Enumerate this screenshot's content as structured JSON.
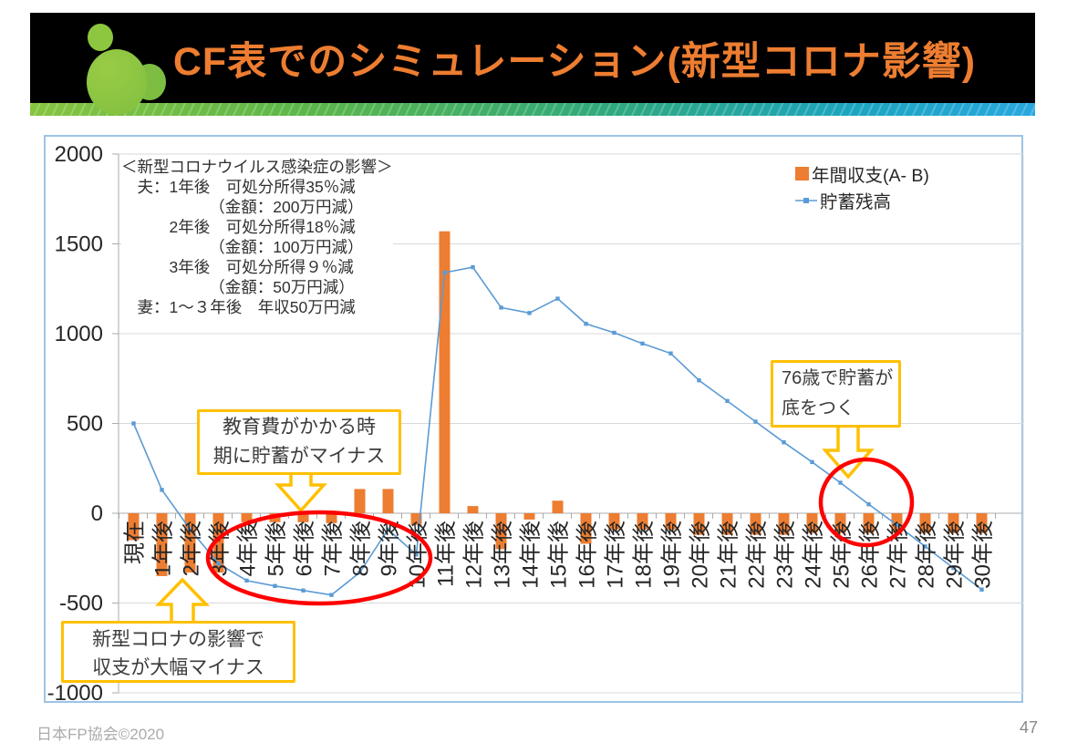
{
  "header": {
    "title": "CF表でのシミュレーション(新型コロナ影響)"
  },
  "footer": {
    "organization": "日本FP協会©2020",
    "page_number": "47"
  },
  "note_block": {
    "text": "＜新型コロナウイルス感染症の影響＞\n　夫：1年後　可処分所得35％減\n　　　　　　（金額：200万円減）\n　　　2年後　可処分所得18％減\n　　　　　　（金額：100万円減）\n　　　3年後　可処分所得９％減\n　　　　　　（金額：50万円減）\n　妻：1～３年後　年収50万円減"
  },
  "legend": {
    "bar_label": "年間収支(A- B)",
    "line_label": "貯蓄残高"
  },
  "callouts": {
    "education": "教育費がかかる時\n期に貯蓄がマイナス",
    "savings_bottom": "76歳で貯蓄が\n底をつく",
    "covid_impact": "新型コロナの影響で\n収支が大幅マイナス"
  },
  "colors": {
    "bar": "#ED7D31",
    "line": "#5B9BD5",
    "title": "#ED7D31",
    "callout_border": "#FFC000",
    "red_circle": "#FF0000",
    "grid": "#D9D9D9",
    "chart_frame": "#9DC3E6"
  },
  "chart_data": {
    "type": "bar",
    "subtype": "bar+line combo",
    "title": "",
    "xlabel": "",
    "ylabel": "",
    "ylim": [
      -1000,
      2000
    ],
    "yticks": [
      -1000,
      -500,
      0,
      500,
      1000,
      1500,
      2000
    ],
    "grid": true,
    "legend_position": "top-right",
    "categories": [
      "現在",
      "1年後",
      "2年後",
      "3年後",
      "4年後",
      "5年後",
      "6年後",
      "7年後",
      "8年後",
      "9年後",
      "10年後",
      "11年後",
      "12年後",
      "13年後",
      "14年後",
      "15年後",
      "16年後",
      "17年後",
      "18年後",
      "19年後",
      "20年後",
      "21年後",
      "22年後",
      "23年後",
      "24年後",
      "25年後",
      "26年後",
      "27年後",
      "28年後",
      "29年後",
      "30年後"
    ],
    "series": [
      {
        "name": "年間収支(A- B)",
        "type": "bar",
        "color": "#ED7D31",
        "values": [
          -150,
          -350,
          -330,
          -330,
          -50,
          -50,
          -50,
          -55,
          135,
          135,
          -65,
          1570,
          40,
          -200,
          -35,
          70,
          -170,
          -90,
          -90,
          -90,
          -120,
          -120,
          -120,
          -120,
          -110,
          -110,
          -110,
          -110,
          -110,
          -110,
          -110
        ]
      },
      {
        "name": "貯蓄残高",
        "type": "line",
        "color": "#5B9BD5",
        "values": [
          500,
          130,
          -90,
          -280,
          -375,
          -405,
          -430,
          -455,
          -330,
          -90,
          -230,
          1340,
          1370,
          1145,
          1115,
          1195,
          1055,
          1005,
          945,
          890,
          740,
          625,
          510,
          395,
          285,
          170,
          50,
          -65,
          -185,
          -305,
          -425
        ]
      }
    ]
  }
}
